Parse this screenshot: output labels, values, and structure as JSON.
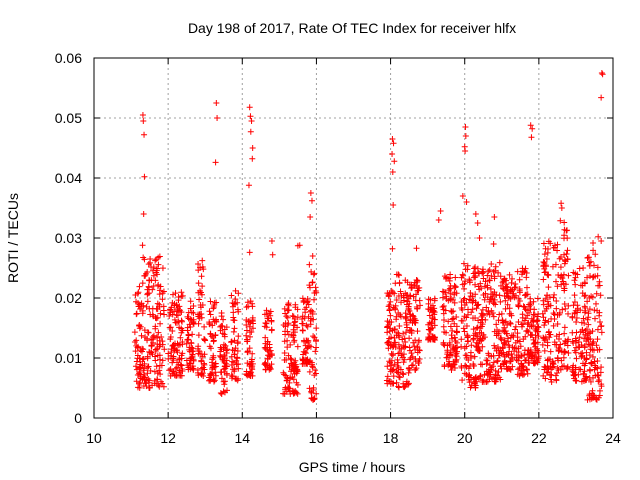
{
  "chart_data": {
    "type": "scatter",
    "title": "Day 198 of 2017, Rate Of TEC Index for receiver hlfx",
    "xlabel": "GPS time / hours",
    "ylabel": "ROTI / TECUs",
    "xlim": [
      10,
      24
    ],
    "ylim": [
      0,
      0.06
    ],
    "xticks": [
      10,
      12,
      14,
      16,
      18,
      20,
      22,
      24
    ],
    "xtick_labels": [
      "10",
      "12",
      "14",
      "16",
      "18",
      "20",
      "22",
      "24"
    ],
    "yticks": [
      0,
      0.01,
      0.02,
      0.03,
      0.04,
      0.05,
      0.06
    ],
    "ytick_labels": [
      "0",
      "0.01",
      "0.02",
      "0.03",
      "0.04",
      "0.05",
      "0.06"
    ],
    "grid": true,
    "marker": "plus",
    "color": "#ff0000",
    "dense_segments": [
      {
        "x": [
          11.1,
          11.3
        ],
        "y": [
          0.005,
          0.022
        ]
      },
      {
        "x": [
          11.3,
          11.9
        ],
        "y": [
          0.005,
          0.027
        ]
      },
      {
        "x": [
          12.0,
          12.4
        ],
        "y": [
          0.007,
          0.021
        ]
      },
      {
        "x": [
          12.5,
          12.7
        ],
        "y": [
          0.008,
          0.02
        ]
      },
      {
        "x": [
          12.8,
          13.0
        ],
        "y": [
          0.007,
          0.028
        ]
      },
      {
        "x": [
          13.1,
          13.3
        ],
        "y": [
          0.006,
          0.02
        ]
      },
      {
        "x": [
          13.4,
          13.6
        ],
        "y": [
          0.004,
          0.018
        ]
      },
      {
        "x": [
          13.7,
          13.9
        ],
        "y": [
          0.006,
          0.022
        ]
      },
      {
        "x": [
          14.1,
          14.3
        ],
        "y": [
          0.007,
          0.02
        ]
      },
      {
        "x": [
          14.6,
          14.8
        ],
        "y": [
          0.008,
          0.018
        ]
      },
      {
        "x": [
          15.1,
          15.5
        ],
        "y": [
          0.004,
          0.021
        ]
      },
      {
        "x": [
          15.6,
          15.8
        ],
        "y": [
          0.009,
          0.02
        ]
      },
      {
        "x": [
          15.8,
          16.0
        ],
        "y": [
          0.003,
          0.026
        ]
      },
      {
        "x": [
          17.9,
          18.5
        ],
        "y": [
          0.005,
          0.024
        ]
      },
      {
        "x": [
          18.5,
          18.8
        ],
        "y": [
          0.008,
          0.023
        ]
      },
      {
        "x": [
          19.0,
          19.2
        ],
        "y": [
          0.013,
          0.02
        ]
      },
      {
        "x": [
          19.4,
          19.8
        ],
        "y": [
          0.008,
          0.024
        ]
      },
      {
        "x": [
          19.9,
          20.3
        ],
        "y": [
          0.005,
          0.026
        ]
      },
      {
        "x": [
          20.3,
          20.6
        ],
        "y": [
          0.006,
          0.025
        ]
      },
      {
        "x": [
          20.6,
          21.0
        ],
        "y": [
          0.006,
          0.026
        ]
      },
      {
        "x": [
          21.0,
          21.4
        ],
        "y": [
          0.008,
          0.024
        ]
      },
      {
        "x": [
          21.4,
          21.7
        ],
        "y": [
          0.007,
          0.025
        ]
      },
      {
        "x": [
          21.7,
          22.0
        ],
        "y": [
          0.009,
          0.02
        ]
      },
      {
        "x": [
          22.1,
          22.5
        ],
        "y": [
          0.006,
          0.03
        ]
      },
      {
        "x": [
          22.5,
          22.8
        ],
        "y": [
          0.008,
          0.033
        ]
      },
      {
        "x": [
          22.9,
          23.3
        ],
        "y": [
          0.006,
          0.025
        ]
      },
      {
        "x": [
          23.3,
          23.7
        ],
        "y": [
          0.003,
          0.03
        ]
      }
    ],
    "outliers": [
      {
        "x": 11.32,
        "y": 0.0505
      },
      {
        "x": 11.33,
        "y": 0.0495
      },
      {
        "x": 11.35,
        "y": 0.0472
      },
      {
        "x": 11.36,
        "y": 0.0402
      },
      {
        "x": 11.34,
        "y": 0.034
      },
      {
        "x": 11.31,
        "y": 0.0288
      },
      {
        "x": 13.3,
        "y": 0.0525
      },
      {
        "x": 13.32,
        "y": 0.05
      },
      {
        "x": 13.28,
        "y": 0.0426
      },
      {
        "x": 14.2,
        "y": 0.0518
      },
      {
        "x": 14.22,
        "y": 0.0503
      },
      {
        "x": 14.25,
        "y": 0.0495
      },
      {
        "x": 14.23,
        "y": 0.0477
      },
      {
        "x": 14.28,
        "y": 0.045
      },
      {
        "x": 14.27,
        "y": 0.0432
      },
      {
        "x": 14.18,
        "y": 0.0388
      },
      {
        "x": 14.2,
        "y": 0.0276
      },
      {
        "x": 14.8,
        "y": 0.0295
      },
      {
        "x": 14.82,
        "y": 0.0272
      },
      {
        "x": 15.5,
        "y": 0.0287
      },
      {
        "x": 15.55,
        "y": 0.0288
      },
      {
        "x": 15.85,
        "y": 0.0375
      },
      {
        "x": 15.88,
        "y": 0.0362
      },
      {
        "x": 15.83,
        "y": 0.0335
      },
      {
        "x": 15.9,
        "y": 0.027
      },
      {
        "x": 18.05,
        "y": 0.0465
      },
      {
        "x": 18.08,
        "y": 0.0458
      },
      {
        "x": 18.04,
        "y": 0.044
      },
      {
        "x": 18.1,
        "y": 0.0428
      },
      {
        "x": 18.06,
        "y": 0.041
      },
      {
        "x": 18.07,
        "y": 0.0355
      },
      {
        "x": 18.05,
        "y": 0.0282
      },
      {
        "x": 18.7,
        "y": 0.0283
      },
      {
        "x": 19.3,
        "y": 0.033
      },
      {
        "x": 19.35,
        "y": 0.0345
      },
      {
        "x": 19.95,
        "y": 0.037
      },
      {
        "x": 20.02,
        "y": 0.0485
      },
      {
        "x": 20.03,
        "y": 0.047
      },
      {
        "x": 20.0,
        "y": 0.0452
      },
      {
        "x": 20.01,
        "y": 0.0445
      },
      {
        "x": 20.05,
        "y": 0.036
      },
      {
        "x": 20.3,
        "y": 0.034
      },
      {
        "x": 20.35,
        "y": 0.0325
      },
      {
        "x": 20.4,
        "y": 0.03
      },
      {
        "x": 20.8,
        "y": 0.0335
      },
      {
        "x": 20.78,
        "y": 0.029
      },
      {
        "x": 21.78,
        "y": 0.0488
      },
      {
        "x": 21.82,
        "y": 0.0482
      },
      {
        "x": 21.8,
        "y": 0.0468
      },
      {
        "x": 22.6,
        "y": 0.0358
      },
      {
        "x": 22.62,
        "y": 0.035
      },
      {
        "x": 23.7,
        "y": 0.0575
      },
      {
        "x": 23.72,
        "y": 0.0573
      },
      {
        "x": 23.68,
        "y": 0.0534
      },
      {
        "x": 23.6,
        "y": 0.0302
      }
    ]
  }
}
